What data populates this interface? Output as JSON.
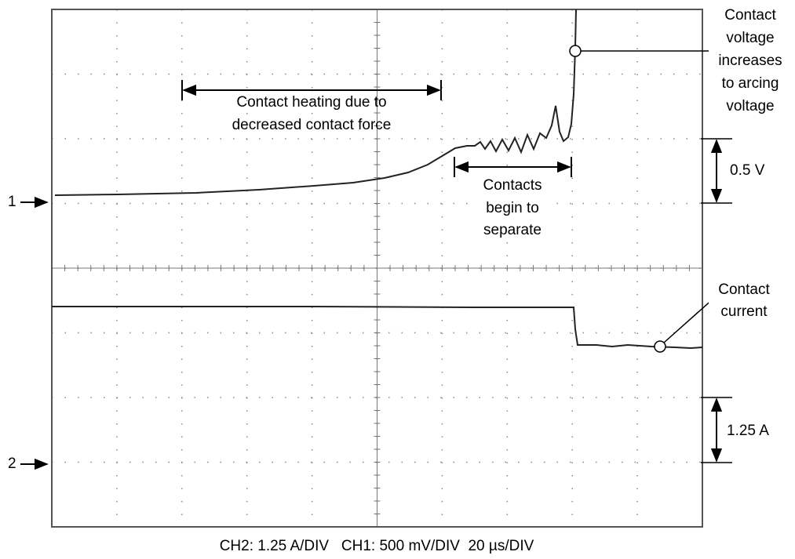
{
  "channel_markers": [
    "1",
    "2"
  ],
  "annotations": {
    "heating": [
      "Contact heating due to",
      "decreased contact force"
    ],
    "separate": [
      "Contacts",
      "begin to",
      "separate"
    ],
    "arcing": [
      "Contact",
      "voltage",
      "increases",
      "to arcing",
      "voltage"
    ],
    "current": [
      "Contact",
      "current"
    ]
  },
  "scale_voltage": "0.5 V",
  "scale_current": "1.25 A",
  "footer": "CH2: 1.25 A/DIV   CH1: 500 mV/DIV  20 µs/DIV"
}
